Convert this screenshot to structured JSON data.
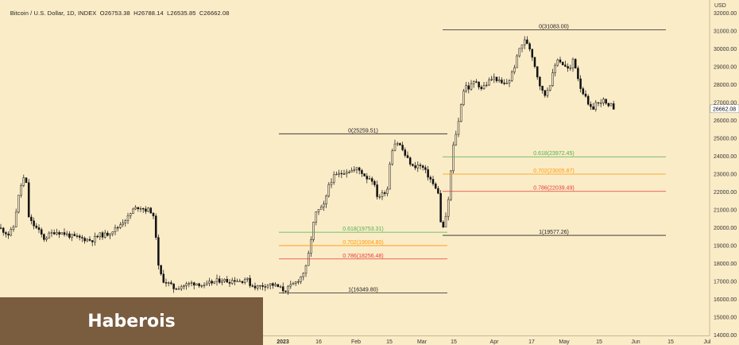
{
  "header": {
    "symbol": "Bitcoin / U.S. Dollar, 1D, INDEX",
    "open": "O26753.38",
    "high": "H26788.14",
    "low": "L26535.85",
    "close": "C26662.08"
  },
  "axis": {
    "currency": "USD",
    "price_ticks": [
      "32000.00",
      "31000.00",
      "30000.00",
      "29000.00",
      "28000.00",
      "27000.00",
      "26000.00",
      "25000.00",
      "24000.00",
      "23000.00",
      "22000.00",
      "21000.00",
      "20000.00",
      "19000.00",
      "18000.00",
      "17000.00",
      "16000.00",
      "15000.00",
      "14000.00"
    ],
    "last_price": "26662.08",
    "x_labels": [
      "2023",
      "16",
      "Feb",
      "15",
      "Mar",
      "15",
      "Apr",
      "17",
      "May",
      "15",
      "Jun",
      "15",
      "Jul"
    ]
  },
  "fib_labels": {
    "upper_top": "0(31083.00)",
    "upper_bottom": "1(19577.26)",
    "upper_618": "0.618(23972.45)",
    "upper_702": "0.702(23005.87)",
    "upper_786": "0.786(22039.49)",
    "lower_top": "0(25259.51)",
    "lower_bottom": "1(16349.80)",
    "lower_618": "0.618(19753.31)",
    "lower_702": "0.702(19004.80)",
    "lower_786": "0.786(18256.48)"
  },
  "watermark": "Haberois",
  "colors": {
    "background": "#fbecc8",
    "candle": "#111111",
    "fib_base": "#222222",
    "fib_618": "#4caf50",
    "fib_702": "#ff9800",
    "fib_786": "#e53935",
    "brand_box": "#7a5c3f"
  },
  "chart_data": {
    "type": "candlestick",
    "title": "",
    "ylabel": "USD",
    "ylim": [
      14000,
      32600
    ],
    "price_scale_ticks": [
      14000,
      15000,
      16000,
      17000,
      18000,
      19000,
      20000,
      21000,
      22000,
      23000,
      24000,
      25000,
      26000,
      27000,
      28000,
      29000,
      30000,
      31000,
      32000
    ],
    "last_price": 26662.08,
    "fib_retracements": [
      {
        "from": 16349.8,
        "to": 25259.51,
        "levels": [
          {
            "ratio": 0.618,
            "price": 19753.31
          },
          {
            "ratio": 0.702,
            "price": 19004.8
          },
          {
            "ratio": 0.786,
            "price": 18256.48
          }
        ]
      },
      {
        "from": 19577.26,
        "to": 31083.0,
        "levels": [
          {
            "ratio": 0.618,
            "price": 23972.45
          },
          {
            "ratio": 0.702,
            "price": 23005.87
          },
          {
            "ratio": 0.786,
            "price": 22039.49
          }
        ]
      }
    ],
    "price_path_approx": [
      [
        0,
        20000
      ],
      [
        6,
        19800
      ],
      [
        12,
        19600
      ],
      [
        18,
        20100
      ],
      [
        22,
        21300
      ],
      [
        26,
        22200
      ],
      [
        30,
        22800
      ],
      [
        34,
        22400
      ],
      [
        37,
        20500
      ],
      [
        42,
        20200
      ],
      [
        48,
        19900
      ],
      [
        56,
        19400
      ],
      [
        62,
        19600
      ],
      [
        70,
        19800
      ],
      [
        80,
        19700
      ],
      [
        92,
        19500
      ],
      [
        104,
        19400
      ],
      [
        116,
        19300
      ],
      [
        126,
        19600
      ],
      [
        134,
        19600
      ],
      [
        140,
        19800
      ],
      [
        148,
        20000
      ],
      [
        156,
        20400
      ],
      [
        162,
        20600
      ],
      [
        168,
        21000
      ],
      [
        176,
        21200
      ],
      [
        184,
        21000
      ],
      [
        188,
        21000
      ],
      [
        192,
        20900
      ],
      [
        196,
        20000
      ],
      [
        200,
        17800
      ],
      [
        205,
        17100
      ],
      [
        212,
        16900
      ],
      [
        220,
        16600
      ],
      [
        226,
        16700
      ],
      [
        234,
        16800
      ],
      [
        242,
        16900
      ],
      [
        250,
        16900
      ],
      [
        258,
        16700
      ],
      [
        264,
        16900
      ],
      [
        272,
        17000
      ],
      [
        280,
        17100
      ],
      [
        288,
        17000
      ],
      [
        296,
        17100
      ],
      [
        304,
        17000
      ],
      [
        310,
        17200
      ],
      [
        316,
        16800
      ],
      [
        324,
        16700
      ],
      [
        334,
        16800
      ],
      [
        342,
        16850
      ],
      [
        350,
        16700
      ],
      [
        358,
        16500
      ],
      [
        366,
        16700
      ],
      [
        374,
        17000
      ],
      [
        380,
        17300
      ],
      [
        386,
        17800
      ],
      [
        390,
        18800
      ],
      [
        394,
        20000
      ],
      [
        398,
        20800
      ],
      [
        402,
        21000
      ],
      [
        406,
        21100
      ],
      [
        410,
        21400
      ],
      [
        414,
        22400
      ],
      [
        418,
        22700
      ],
      [
        422,
        22900
      ],
      [
        428,
        23000
      ],
      [
        436,
        23200
      ],
      [
        444,
        23200
      ],
      [
        450,
        23300
      ],
      [
        456,
        23100
      ],
      [
        462,
        22800
      ],
      [
        468,
        22800
      ],
      [
        472,
        22300
      ],
      [
        476,
        21700
      ],
      [
        482,
        21900
      ],
      [
        488,
        22200
      ],
      [
        492,
        24000
      ],
      [
        496,
        24700
      ],
      [
        500,
        24800
      ],
      [
        504,
        24600
      ],
      [
        508,
        24300
      ],
      [
        512,
        23900
      ],
      [
        516,
        23700
      ],
      [
        520,
        23400
      ],
      [
        526,
        23500
      ],
      [
        532,
        23400
      ],
      [
        538,
        23000
      ],
      [
        544,
        22600
      ],
      [
        548,
        22200
      ],
      [
        552,
        22000
      ],
      [
        554,
        20400
      ],
      [
        558,
        20000
      ],
      [
        562,
        20600
      ],
      [
        566,
        22000
      ],
      [
        570,
        24300
      ],
      [
        574,
        25200
      ],
      [
        578,
        26000
      ],
      [
        582,
        27400
      ],
      [
        586,
        28000
      ],
      [
        590,
        27800
      ],
      [
        596,
        28100
      ],
      [
        600,
        28200
      ],
      [
        606,
        27800
      ],
      [
        612,
        28000
      ],
      [
        618,
        28300
      ],
      [
        624,
        28400
      ],
      [
        630,
        28100
      ],
      [
        636,
        28000
      ],
      [
        642,
        28300
      ],
      [
        646,
        28800
      ],
      [
        650,
        29300
      ],
      [
        654,
        30000
      ],
      [
        658,
        30300
      ],
      [
        662,
        30500
      ],
      [
        666,
        30200
      ],
      [
        670,
        29700
      ],
      [
        674,
        29000
      ],
      [
        678,
        28300
      ],
      [
        682,
        27700
      ],
      [
        686,
        27400
      ],
      [
        690,
        27800
      ],
      [
        694,
        28200
      ],
      [
        698,
        28900
      ],
      [
        702,
        29500
      ],
      [
        706,
        29300
      ],
      [
        712,
        29000
      ],
      [
        718,
        28800
      ],
      [
        722,
        29500
      ],
      [
        726,
        28800
      ],
      [
        730,
        28000
      ],
      [
        734,
        27600
      ],
      [
        738,
        27200
      ],
      [
        742,
        26700
      ],
      [
        746,
        26600
      ],
      [
        750,
        27000
      ],
      [
        754,
        26900
      ],
      [
        758,
        27200
      ],
      [
        762,
        27000
      ],
      [
        766,
        26700
      ],
      [
        770,
        26850
      ],
      [
        774,
        26660
      ]
    ]
  }
}
